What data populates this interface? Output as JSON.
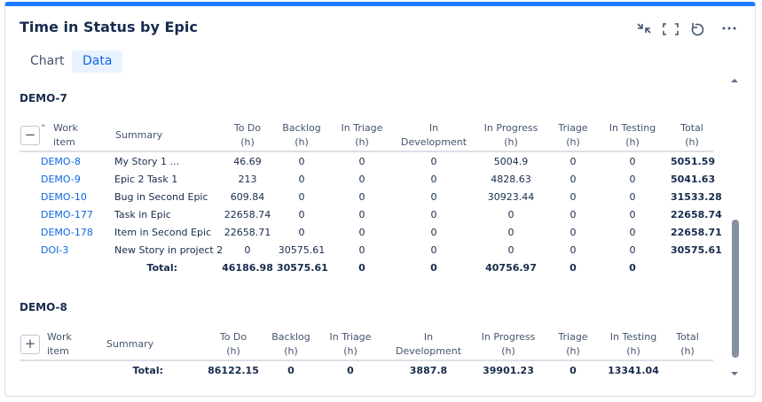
{
  "title": "Time in Status by Epic",
  "tabs": [
    "Chart",
    "Data"
  ],
  "columns": [
    [
      "Work",
      "item"
    ],
    [
      "Summary"
    ],
    [
      "To Do",
      "(h)"
    ],
    [
      "Backlog",
      "(h)"
    ],
    [
      "In Triage",
      "(h)"
    ],
    [
      "In",
      "Development"
    ],
    [
      "In Progress",
      "(h)"
    ],
    [
      "Triage",
      "(h)"
    ],
    [
      "In Testing",
      "(h)"
    ],
    [
      "Total",
      "(h)"
    ]
  ],
  "groups": [
    {
      "name": "DEMO-7",
      "expanded": true,
      "rows": [
        {
          "key": "DEMO-8",
          "summary": "My Story 1 ...",
          "values": [
            46.69,
            0,
            0,
            0,
            5004.9,
            0,
            0,
            5051.59
          ]
        },
        {
          "key": "DEMO-9",
          "summary": "Epic 2 Task 1",
          "values": [
            213,
            0,
            0,
            0,
            4828.63,
            0,
            0,
            5041.63
          ]
        },
        {
          "key": "DEMO-10",
          "summary": "Bug in Second Epic",
          "values": [
            609.84,
            0,
            0,
            0,
            30923.44,
            0,
            0,
            31533.28
          ]
        },
        {
          "key": "DEMO-177",
          "summary": "Task in Epic",
          "values": [
            22658.74,
            0,
            0,
            0,
            0,
            0,
            0,
            22658.74
          ]
        },
        {
          "key": "DEMO-178",
          "summary": "Item in Second Epic",
          "values": [
            22658.71,
            0,
            0,
            0,
            0,
            0,
            0,
            22658.71
          ]
        },
        {
          "key": "DOI-3",
          "summary": "New Story in project 2",
          "values": [
            0,
            30575.61,
            0,
            0,
            0,
            0,
            0,
            30575.61
          ]
        }
      ],
      "total_label": "Total:",
      "totals": [
        46186.98,
        30575.61,
        0,
        0,
        40756.97,
        0,
        0
      ]
    },
    {
      "name": "DEMO-8",
      "expanded": false,
      "rows": [],
      "total_label": "Total:",
      "totals": [
        86122.15,
        0,
        0,
        3887.8,
        39901.23,
        0,
        13341.04
      ]
    }
  ]
}
